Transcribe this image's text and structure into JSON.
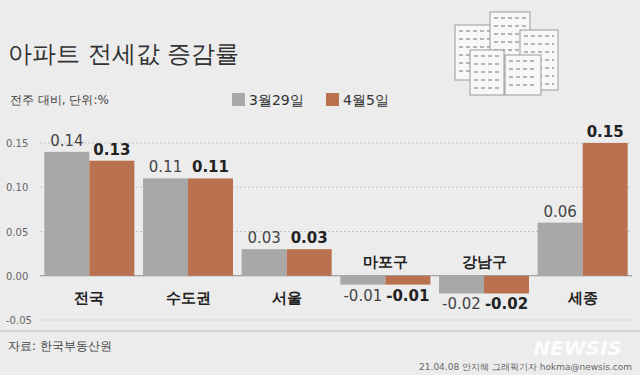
{
  "chart_data": {
    "type": "bar",
    "title": "아파트 전세값 증감률",
    "subtitle": "전주 대비, 단위:%",
    "source": "자료: 한국부동산원",
    "annotations": [
      "21.04.08 안지혜 그래픽기자 hokma@newsis.com",
      "NEWSIS"
    ],
    "categories": [
      "전국",
      "수도권",
      "서울",
      "마포구",
      "강남구",
      "세종"
    ],
    "series": [
      {
        "name": "3월29일",
        "color": "#a8a8a8",
        "values": [
          0.14,
          0.11,
          0.03,
          -0.01,
          -0.02,
          0.06
        ]
      },
      {
        "name": "4월5일",
        "color": "#b9714f",
        "values": [
          0.13,
          0.11,
          0.03,
          -0.01,
          -0.02,
          0.15
        ]
      }
    ],
    "ylim": [
      -0.05,
      0.15
    ],
    "yticks": [
      -0.05,
      {
        "value": 0,
        "label": "0.00"
      },
      0.05,
      {
        "value": 0.1,
        "label": "0.10"
      },
      0.15
    ],
    "grid": true,
    "legend": "top",
    "data_labels": true
  }
}
